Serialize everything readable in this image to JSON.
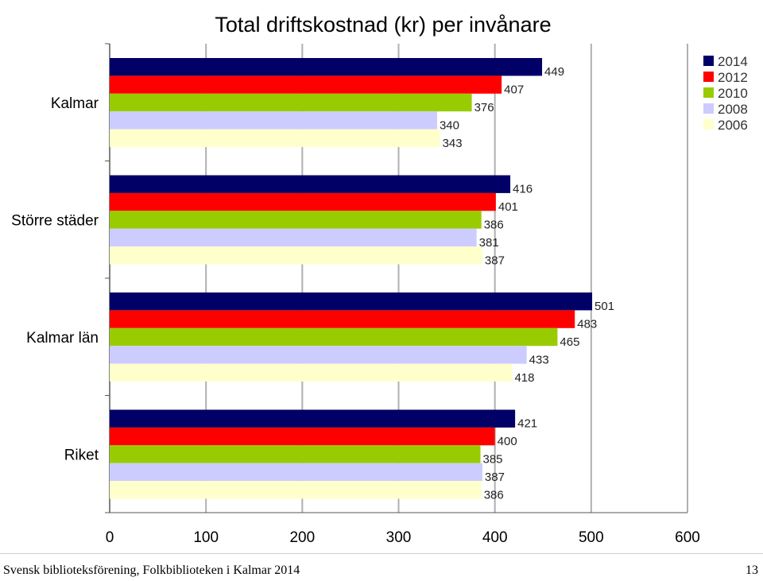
{
  "chart_data": {
    "type": "bar",
    "orientation": "horizontal",
    "title": "Total driftskostnad (kr) per invånare",
    "categories": [
      "Kalmar",
      "Större städer",
      "Kalmar län",
      "Riket"
    ],
    "series": [
      {
        "name": "2014",
        "color": "#000066",
        "values": [
          449,
          416,
          501,
          421
        ]
      },
      {
        "name": "2012",
        "color": "#FF0000",
        "values": [
          407,
          401,
          483,
          400
        ]
      },
      {
        "name": "2010",
        "color": "#99CC00",
        "values": [
          376,
          386,
          465,
          385
        ]
      },
      {
        "name": "2008",
        "color": "#CCCCFF",
        "values": [
          340,
          381,
          433,
          387
        ]
      },
      {
        "name": "2006",
        "color": "#FFFFCC",
        "values": [
          343,
          387,
          418,
          386
        ]
      }
    ],
    "xlim": [
      0,
      600
    ],
    "xticks": [
      0,
      100,
      200,
      300,
      400,
      500,
      600
    ],
    "xlabel": "",
    "ylabel": "",
    "grid": "vertical",
    "legend_position": "top-right"
  },
  "footer": {
    "source": "Svensk biblioteksförening, Folkbiblioteken i Kalmar 2014",
    "page_number": "13"
  }
}
